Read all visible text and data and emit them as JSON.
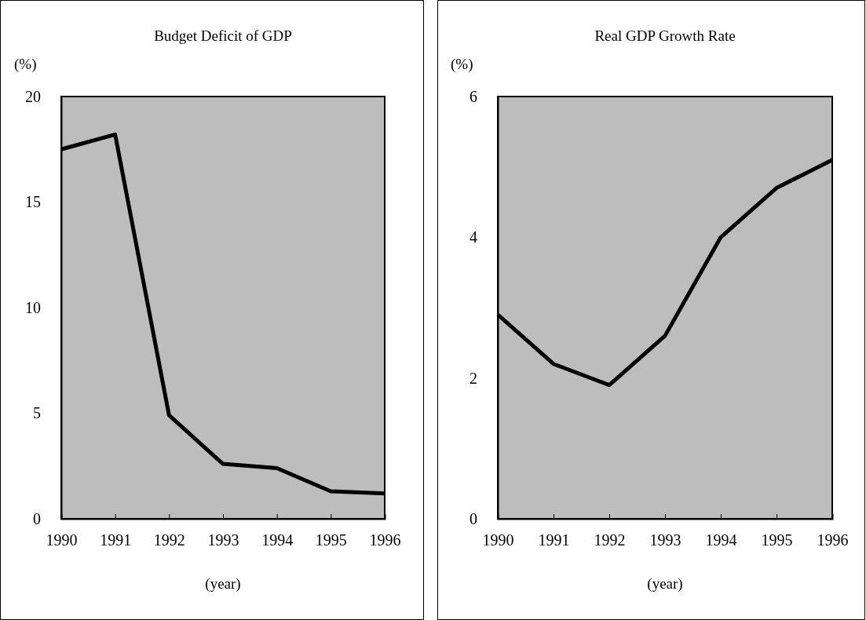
{
  "chart_data": [
    {
      "type": "line",
      "title": "Budget Deficit of GDP",
      "ylabel": "(%)",
      "xlabel": "(year)",
      "x": [
        1990,
        1991,
        1992,
        1993,
        1994,
        1995,
        1996
      ],
      "series": [
        {
          "color": "#000000",
          "values": [
            17.5,
            18.2,
            4.9,
            2.6,
            2.4,
            1.3,
            1.2
          ]
        }
      ],
      "xlim": [
        1990,
        1996
      ],
      "xticks": [
        1990,
        1991,
        1992,
        1993,
        1994,
        1995,
        1996
      ],
      "ylim": [
        0,
        20
      ],
      "yticks": [
        0,
        5,
        10,
        15,
        20
      ],
      "grid": false,
      "marker": "none",
      "line_style": "solid"
    },
    {
      "type": "line",
      "title": "Real GDP Growth Rate",
      "ylabel": "(%)",
      "xlabel": "(year)",
      "x": [
        1990,
        1991,
        1992,
        1993,
        1994,
        1995,
        1996
      ],
      "series": [
        {
          "color": "#000000",
          "values": [
            2.9,
            2.2,
            1.9,
            2.6,
            4.0,
            4.7,
            5.1
          ]
        }
      ],
      "xlim": [
        1990,
        1996
      ],
      "xticks": [
        1990,
        1991,
        1992,
        1993,
        1994,
        1995,
        1996
      ],
      "ylim": [
        0,
        6
      ],
      "yticks": [
        0,
        2,
        4,
        6
      ],
      "grid": false,
      "marker": "none",
      "line_style": "solid"
    }
  ]
}
